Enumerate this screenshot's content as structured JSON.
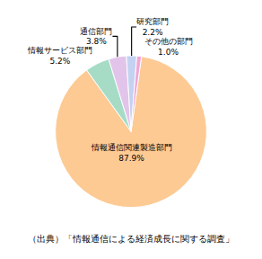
{
  "chart_data": {
    "type": "pie",
    "categories": [
      "情報通信関連製造部門",
      "情報サービス部門",
      "通信部門",
      "研究部門",
      "その他の部門"
    ],
    "values": [
      87.9,
      5.2,
      3.8,
      2.2,
      1.0
    ],
    "value_labels": [
      "87.9%",
      "5.2%",
      "3.8%",
      "2.2%",
      "1.0%"
    ],
    "colors": [
      "#fdca94",
      "#a6dcc6",
      "#e2c4ea",
      "#c4d2f2",
      "#f2a6d6"
    ],
    "data_labels": true,
    "annotations": [
      "（出典）「情報通信による経済成長に関する調査」"
    ]
  }
}
